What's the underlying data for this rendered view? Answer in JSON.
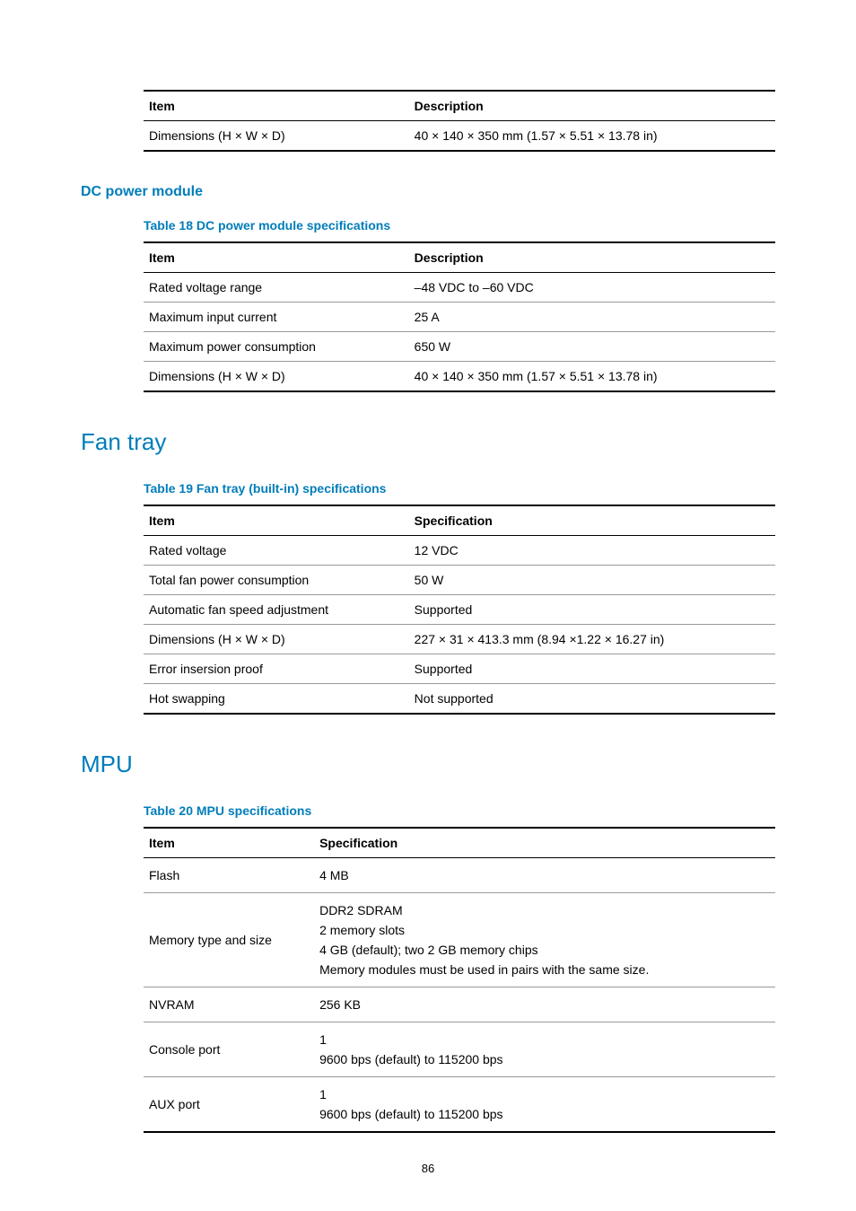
{
  "colors": {
    "heading": "#007dba",
    "text": "#000000",
    "rule_heavy": "#000000",
    "rule_light": "#999999",
    "background": "#ffffff"
  },
  "typography": {
    "body_fontsize_pt": 10.5,
    "h2_fontsize_pt": 20,
    "h3_fontsize_pt": 12,
    "caption_fontsize_pt": 10.5
  },
  "page_number": "86",
  "table_top": {
    "headers": {
      "col1": "Item",
      "col2": "Description"
    },
    "rows": [
      {
        "item": "Dimensions (H × W × D)",
        "desc": "40 × 140 × 350 mm (1.57 × 5.51 × 13.78 in)"
      }
    ]
  },
  "dc_power": {
    "heading": "DC power module",
    "caption": "Table 18 DC power module specifications",
    "headers": {
      "col1": "Item",
      "col2": "Description"
    },
    "rows": [
      {
        "item": "Rated voltage range",
        "desc": "–48 VDC to –60 VDC"
      },
      {
        "item": "Maximum input current",
        "desc": "25 A"
      },
      {
        "item": "Maximum power consumption",
        "desc": "650 W"
      },
      {
        "item": "Dimensions (H × W × D)",
        "desc": "40 × 140 × 350 mm (1.57 × 5.51 × 13.78 in)"
      }
    ]
  },
  "fan_tray": {
    "heading": "Fan tray",
    "caption": "Table 19 Fan tray (built-in) specifications",
    "headers": {
      "col1": "Item",
      "col2": "Specification"
    },
    "rows": [
      {
        "item": "Rated voltage",
        "desc": "12 VDC"
      },
      {
        "item": "Total fan power consumption",
        "desc": "50 W"
      },
      {
        "item": "Automatic fan speed adjustment",
        "desc": "Supported"
      },
      {
        "item": "Dimensions (H × W × D)",
        "desc": "227 × 31 × 413.3 mm (8.94 ×1.22 × 16.27 in)"
      },
      {
        "item": "Error insersion proof",
        "desc": "Supported"
      },
      {
        "item": "Hot swapping",
        "desc": "Not supported"
      }
    ]
  },
  "mpu": {
    "heading": "MPU",
    "caption": "Table 20 MPU specifications",
    "headers": {
      "col1": "Item",
      "col2": "Specification"
    },
    "rows": [
      {
        "item": "Flash",
        "desc": [
          "4 MB"
        ]
      },
      {
        "item": "Memory type and size",
        "desc": [
          "DDR2 SDRAM",
          "2 memory slots",
          "4 GB (default); two 2 GB memory chips",
          "Memory modules must be used in pairs with the same size."
        ]
      },
      {
        "item": "NVRAM",
        "desc": [
          "256 KB"
        ]
      },
      {
        "item": "Console port",
        "desc": [
          "1",
          "9600 bps (default) to 115200 bps"
        ]
      },
      {
        "item": "AUX port",
        "desc": [
          "1",
          "9600 bps (default) to 115200 bps"
        ]
      }
    ]
  }
}
